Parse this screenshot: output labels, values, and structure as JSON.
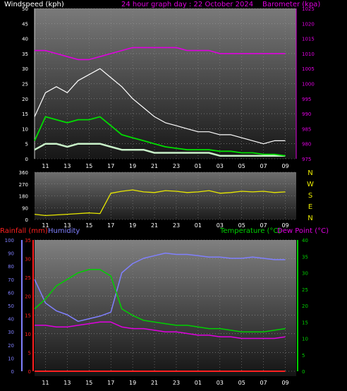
{
  "chart_data": [
    {
      "type": "line",
      "panel": "wind",
      "title": "24 hour graph day : 22 October 2024",
      "ylabel_left": "Windspeed (kph)",
      "ylabel_right": "Barometer (kpa)",
      "x_ticks": [
        "11",
        "13",
        "15",
        "17",
        "19",
        "21",
        "23",
        "01",
        "03",
        "05",
        "07",
        "09"
      ],
      "ylim_left": [
        0,
        50
      ],
      "ylim_right": [
        975,
        1025
      ],
      "y_ticks_left": [
        0,
        5,
        10,
        15,
        20,
        25,
        30,
        35,
        40,
        45,
        50
      ],
      "y_ticks_right": [
        975,
        980,
        985,
        990,
        995,
        1000,
        1005,
        1010,
        1015,
        1020,
        1025
      ],
      "grid": true,
      "colors": {
        "gust": "#ffffff",
        "average": "#00dd00",
        "speed": "#c8f0c8",
        "barometer": "#e000e0",
        "title": "#e000e0",
        "axis_label": "#ffffff"
      },
      "series": [
        {
          "name": "gust",
          "x": [
            10,
            11,
            12,
            13,
            14,
            15,
            16,
            17,
            18,
            19,
            20,
            21,
            22,
            23,
            24,
            25,
            26,
            27,
            28,
            29,
            30,
            31,
            32,
            33
          ],
          "values": [
            14,
            22,
            24,
            22,
            26,
            28,
            30,
            27,
            24,
            20,
            17,
            14,
            12,
            11,
            10,
            9,
            9,
            8,
            8,
            7,
            6,
            5,
            6,
            6
          ]
        },
        {
          "name": "average",
          "x": [
            10,
            11,
            12,
            13,
            14,
            15,
            16,
            17,
            18,
            19,
            20,
            21,
            22,
            23,
            24,
            25,
            26,
            27,
            28,
            29,
            30,
            31,
            32,
            33
          ],
          "values": [
            6,
            14,
            13,
            12,
            13,
            13,
            14,
            11,
            8,
            7,
            6,
            5,
            4,
            3.5,
            3,
            3,
            3,
            2.5,
            2.5,
            2,
            2,
            1.5,
            1.5,
            1
          ]
        },
        {
          "name": "speed",
          "x": [
            10,
            11,
            12,
            13,
            14,
            15,
            16,
            17,
            18,
            19,
            20,
            21,
            22,
            23,
            24,
            25,
            26,
            27,
            28,
            29,
            30,
            31,
            32,
            33
          ],
          "values": [
            3,
            5,
            5,
            4,
            5,
            5,
            5,
            4,
            3,
            3,
            3,
            2,
            2,
            2,
            2,
            2,
            2,
            1,
            1,
            1,
            1,
            1,
            1,
            1
          ]
        },
        {
          "name": "barometer",
          "x": [
            10,
            11,
            12,
            13,
            14,
            15,
            16,
            17,
            18,
            19,
            20,
            21,
            22,
            23,
            24,
            25,
            26,
            27,
            28,
            29,
            30,
            31,
            32,
            33
          ],
          "values": [
            1011,
            1011,
            1010,
            1009,
            1008,
            1008,
            1009,
            1010,
            1011,
            1012,
            1012,
            1012,
            1012,
            1012,
            1011,
            1011,
            1011,
            1010,
            1010,
            1010,
            1010,
            1010,
            1010,
            1010
          ]
        }
      ]
    },
    {
      "type": "line",
      "panel": "direction",
      "x_ticks": [
        "11",
        "13",
        "15",
        "17",
        "19",
        "21",
        "23",
        "01",
        "03",
        "05",
        "07",
        "09"
      ],
      "ylim": [
        0,
        360
      ],
      "y_ticks": [
        0,
        90,
        180,
        270,
        360
      ],
      "compass": [
        "N",
        "W",
        "S",
        "E",
        "N"
      ],
      "grid": true,
      "colors": {
        "direction": "#e8e800",
        "compass": "#e8e800"
      },
      "series": [
        {
          "name": "direction",
          "x": [
            10,
            11,
            12,
            13,
            14,
            15,
            16,
            17,
            18,
            19,
            20,
            21,
            22,
            23,
            24,
            25,
            26,
            27,
            28,
            29,
            30,
            31,
            32,
            33
          ],
          "values": [
            40,
            30,
            35,
            40,
            45,
            50,
            45,
            200,
            215,
            225,
            210,
            205,
            220,
            215,
            205,
            210,
            220,
            200,
            205,
            215,
            210,
            215,
            205,
            210
          ]
        }
      ]
    },
    {
      "type": "line",
      "panel": "temperature",
      "labels": {
        "rainfall": "Rainfall (mm)",
        "humidity": "Humidity",
        "temperature": "Temperature (°C)",
        "dewpoint": "Dew Point (°C)"
      },
      "x_ticks": [
        "11",
        "13",
        "15",
        "17",
        "19",
        "21",
        "23",
        "01",
        "03",
        "05",
        "07",
        "09"
      ],
      "ylim_humidity": [
        0,
        100
      ],
      "ylim_rain": [
        0,
        35
      ],
      "ylim_temp": [
        0,
        40
      ],
      "y_ticks_humidity": [
        0,
        10,
        20,
        30,
        40,
        50,
        60,
        70,
        80,
        90,
        100
      ],
      "y_ticks_rain": [
        0,
        5,
        10,
        15,
        20,
        25,
        30,
        35
      ],
      "y_ticks_temp": [
        0,
        5,
        10,
        15,
        20,
        25,
        30,
        35,
        40
      ],
      "grid": true,
      "colors": {
        "rainfall": "#ff2020",
        "humidity": "#8080ff",
        "temperature": "#00d000",
        "dewpoint": "#e000e0",
        "temp_axis": "#00d000",
        "hum_axis": "#8080ff",
        "rain_axis": "#ff2020"
      },
      "series": [
        {
          "name": "humidity",
          "x": [
            10,
            11,
            12,
            13,
            14,
            15,
            16,
            17,
            18,
            19,
            20,
            21,
            22,
            23,
            24,
            25,
            26,
            27,
            28,
            29,
            30,
            31,
            32,
            33
          ],
          "values": [
            70,
            52,
            46,
            43,
            38,
            40,
            42,
            45,
            75,
            82,
            86,
            88,
            90,
            89,
            89,
            88,
            87,
            87,
            86,
            86,
            87,
            86,
            85,
            85
          ]
        },
        {
          "name": "temperature",
          "x": [
            10,
            11,
            12,
            13,
            14,
            15,
            16,
            17,
            18,
            19,
            20,
            21,
            22,
            23,
            24,
            25,
            26,
            27,
            28,
            29,
            30,
            31,
            32,
            33
          ],
          "values": [
            19,
            22,
            26,
            28,
            30,
            31,
            31,
            29,
            19,
            17,
            15.5,
            15,
            14.5,
            14,
            14,
            13.5,
            13,
            13,
            12.5,
            12,
            12,
            12,
            12.5,
            13
          ]
        },
        {
          "name": "dewpoint",
          "x": [
            10,
            11,
            12,
            13,
            14,
            15,
            16,
            17,
            18,
            19,
            20,
            21,
            22,
            23,
            24,
            25,
            26,
            27,
            28,
            29,
            30,
            31,
            32,
            33
          ],
          "values": [
            14,
            14,
            13.5,
            13.5,
            14,
            14.5,
            15,
            15,
            13.5,
            13,
            13,
            12.5,
            12,
            12,
            11.5,
            11,
            11,
            10.5,
            10.5,
            10,
            10,
            10,
            10,
            10.5
          ]
        },
        {
          "name": "rainfall",
          "x": [
            10,
            11,
            12,
            13,
            14,
            15,
            16,
            17,
            18,
            19,
            20,
            21,
            22,
            23,
            24,
            25,
            26,
            27,
            28,
            29,
            30,
            31,
            32,
            33
          ],
          "values": [
            0,
            0,
            0,
            0,
            0,
            0,
            0,
            0,
            0,
            0,
            0,
            0,
            0,
            0,
            0,
            0,
            0,
            0,
            0,
            0,
            0,
            0,
            0,
            0
          ]
        }
      ]
    }
  ]
}
